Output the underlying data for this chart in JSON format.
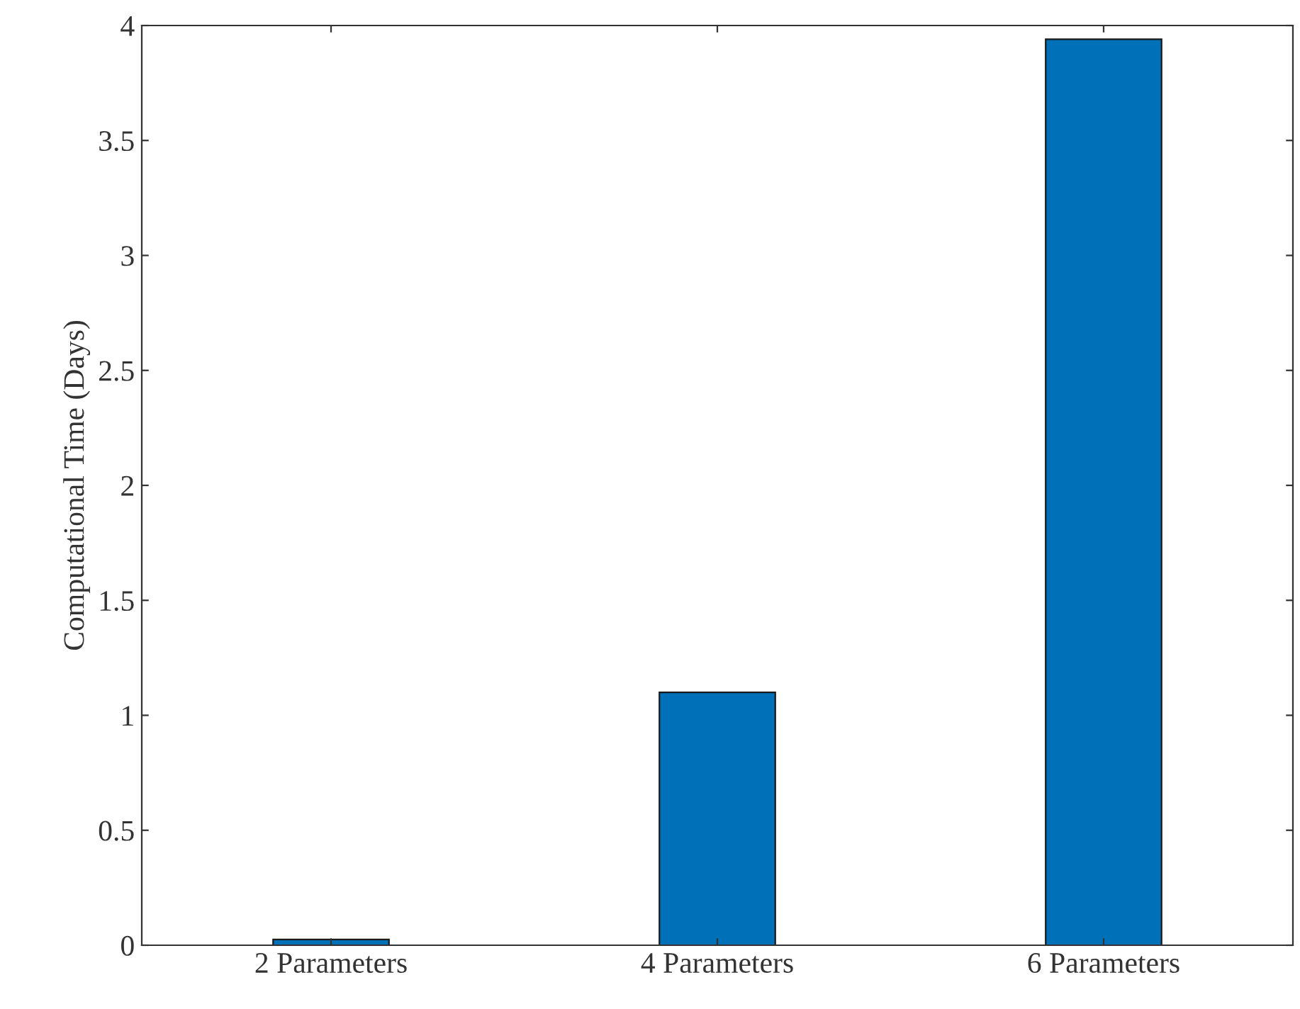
{
  "chart_data": {
    "type": "bar",
    "ylabel": "Computational Time (Days)",
    "categories": [
      "2 Parameters",
      "4 Parameters",
      "6 Parameters"
    ],
    "values": [
      0.025,
      1.1,
      3.94
    ],
    "color": "#0070b8",
    "ylim": [
      0,
      4
    ],
    "yticks": [
      0,
      0.5,
      1,
      1.5,
      2,
      2.5,
      3,
      3.5,
      4
    ],
    "grid": false
  }
}
